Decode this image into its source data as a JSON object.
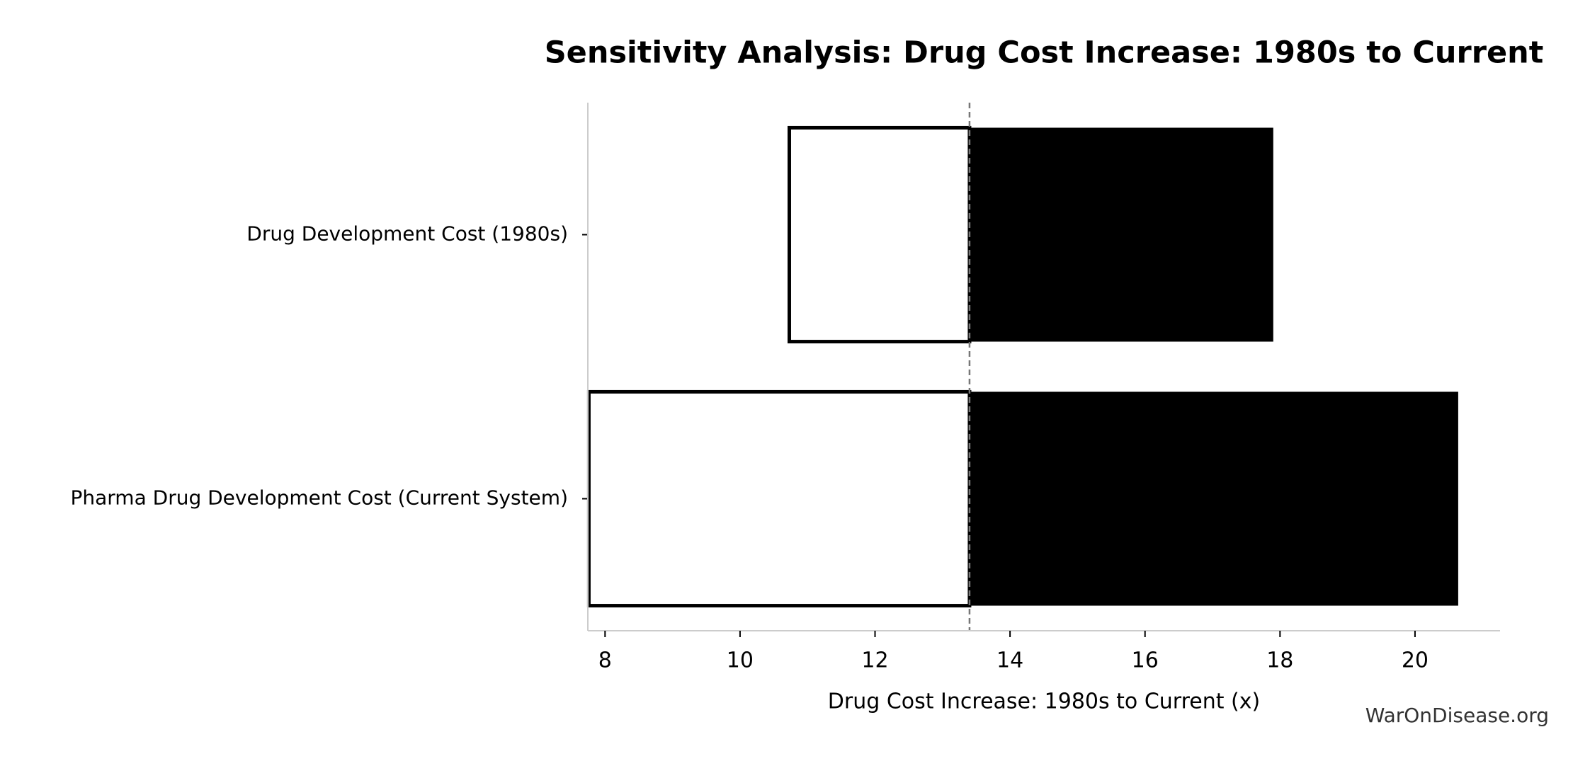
{
  "chart_data": {
    "type": "tornado",
    "title": "Sensitivity Analysis: Drug Cost Increase: 1980s to Current",
    "x_label": "Drug Cost Increase: 1980s to Current (x)",
    "watermark": "WarOnDisease.org",
    "categories": [
      "Drug Development Cost (1980s)",
      "Pharma Drug Development Cost (Current System)"
    ],
    "baseline": 13.4,
    "series": [
      {
        "color": "#ffffff",
        "values": [
          10.73,
          7.76
        ]
      },
      {
        "color": "#000000",
        "values": [
          17.9,
          20.64
        ]
      }
    ],
    "xlim": [
      7.745,
      21.26
    ],
    "xticks": [
      8,
      10,
      12,
      14,
      16,
      18,
      20
    ]
  }
}
